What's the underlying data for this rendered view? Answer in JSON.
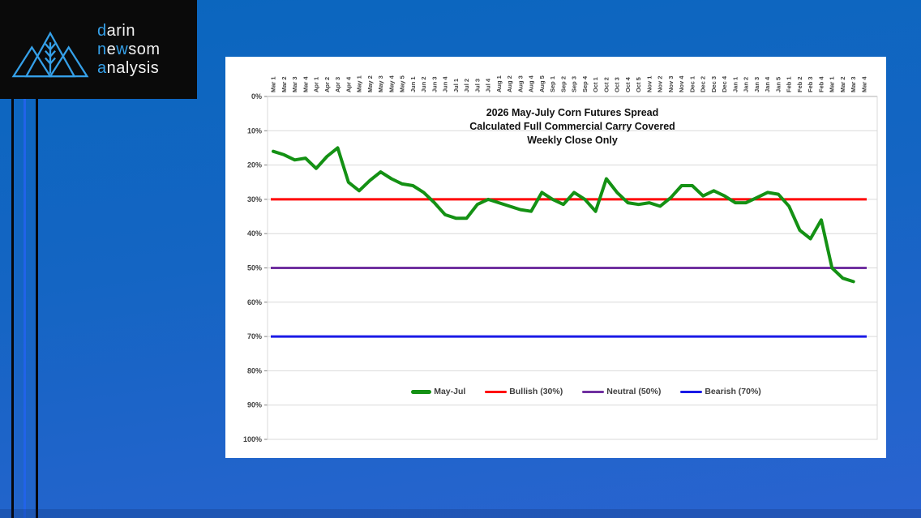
{
  "slide": {
    "logo": {
      "icon": "mountains-wheat",
      "accent_color": "#35a0e8",
      "text_color": "#f2f2f2",
      "lines": [
        [
          {
            "t": "d",
            "accent": true
          },
          {
            "t": "arin",
            "accent": false
          }
        ],
        [
          {
            "t": "n",
            "accent": true
          },
          {
            "t": "e",
            "accent": false
          },
          {
            "t": "w",
            "accent": true
          },
          {
            "t": "som",
            "accent": false
          }
        ],
        [
          {
            "t": "a",
            "accent": true
          },
          {
            "t": "nalysis",
            "accent": false
          }
        ]
      ]
    }
  },
  "chart_data": {
    "type": "line",
    "title": "2026 May-July Corn Futures Spread",
    "subtitle1": "Calculated Full Commercial Carry Covered",
    "subtitle2": "Weekly Close Only",
    "grid": true,
    "legend_position": "bottom-inside",
    "y_axis": {
      "min": 0,
      "max": 100,
      "step": 10,
      "inverted": true,
      "format": "percent",
      "tick_labels": [
        "0%",
        "10%",
        "20%",
        "30%",
        "40%",
        "50%",
        "60%",
        "70%",
        "80%",
        "90%",
        "100%"
      ]
    },
    "categories": [
      "Mar 1",
      "Mar 2",
      "Mar 3",
      "Mar 4",
      "Apr 1",
      "Apr 2",
      "Apr 3",
      "Apr 4",
      "May 1",
      "May 2",
      "May 3",
      "May 4",
      "May 5",
      "Jun 1",
      "Jun 2",
      "Jun 3",
      "Jun 4",
      "Jul 1",
      "Jul 2",
      "Jul 3",
      "Jul 4",
      "Aug 1",
      "Aug 2",
      "Aug 3",
      "Aug 4",
      "Aug 5",
      "Sep 1",
      "Sep 2",
      "Sep 3",
      "Sep 4",
      "Oct 1",
      "Oct 2",
      "Oct 3",
      "Oct 4",
      "Oct 5",
      "Nov 1",
      "Nov 2",
      "Nov 3",
      "Nov 4",
      "Dec 1",
      "Dec 2",
      "Dec 3",
      "Dec 4",
      "Jan 1",
      "Jan 2",
      "Jan 3",
      "Jan 4",
      "Jan 5",
      "Feb 1",
      "Feb 2",
      "Feb 3",
      "Feb 4",
      "Mar 1",
      "Mar 2",
      "Mar 3",
      "Mar 4"
    ],
    "series": [
      {
        "name": "May-Jul",
        "kind": "data",
        "color": "#149114",
        "values": [
          16,
          17,
          18.5,
          18,
          21,
          17.5,
          15,
          25,
          27.5,
          24.5,
          22,
          24,
          25.5,
          26,
          28,
          31,
          34.5,
          35.5,
          35.5,
          31.5,
          30,
          31,
          32,
          33,
          33.5,
          28,
          30,
          31.5,
          28,
          30,
          33.5,
          24,
          28,
          31,
          31.5,
          31,
          32,
          29.5,
          26,
          26,
          29,
          27.5,
          29,
          31,
          31,
          29.5,
          28,
          28.5,
          32,
          39,
          41.5,
          36,
          50,
          53,
          54,
          null
        ]
      },
      {
        "name": "Bullish (30%)",
        "kind": "reference",
        "color": "#ff0000",
        "value": 30
      },
      {
        "name": "Neutral (50%)",
        "kind": "reference",
        "color": "#7030a0",
        "value": 50
      },
      {
        "name": "Bearish (70%)",
        "kind": "reference",
        "color": "#1a1ae6",
        "value": 70
      }
    ]
  }
}
